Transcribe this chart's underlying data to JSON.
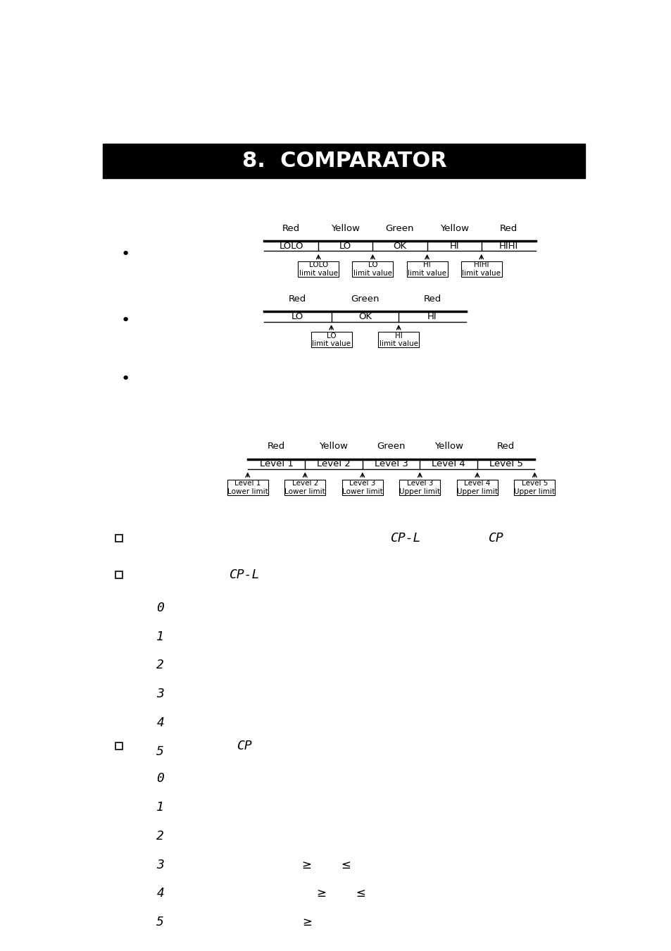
{
  "title": "8.  COMPARATOR",
  "title_bg": "#000000",
  "title_fg": "#ffffff",
  "bg_color": "#ffffff",
  "diagram1": {
    "colors_row": [
      "Red",
      "Yellow",
      "Green",
      "Yellow",
      "Red"
    ],
    "bars_row": [
      "LOLO",
      "LO",
      "OK",
      "HI",
      "HIHI"
    ],
    "boxes": [
      "LOLO\nlimit value",
      "LO\nlimit value",
      "HI\nlimit value",
      "HIHI\nlimit value"
    ],
    "arrow_col_indices": [
      1,
      2,
      3,
      4
    ]
  },
  "diagram2": {
    "colors_row": [
      "Red",
      "Green",
      "Red"
    ],
    "bars_row": [
      "LO",
      "OK",
      "HI"
    ],
    "boxes": [
      "LO\nlimit value",
      "HI\nlimit value"
    ],
    "arrow_col_indices": [
      1,
      2
    ]
  },
  "diagram3": {
    "colors_row": [
      "Red",
      "Yellow",
      "Green",
      "Yellow",
      "Red"
    ],
    "bars_row": [
      "Level 1",
      "Level 2",
      "Level 3",
      "Level 4",
      "Level 5"
    ],
    "boxes": [
      "Level 1\nLower limit",
      "Level 2\nLower limit",
      "Level 3\nLower limit",
      "Level 3\nUpper limit",
      "Level 4\nUpper limit",
      "Level 5\nUpper limit"
    ],
    "arrow_col_indices": [
      0,
      1,
      2,
      3,
      4,
      5
    ]
  },
  "bullet1_cpl": "CP-L",
  "bullet1_cp": "CP",
  "bullet2_header": "CP-L",
  "bullet2_items": [
    "0",
    "1",
    "2",
    "3",
    "4",
    "5"
  ],
  "bullet3_header": "CP",
  "bullet3_items": [
    "0",
    "1",
    "2",
    "3",
    "4",
    "5"
  ],
  "bullet3_extra": [
    "",
    "",
    "",
    "≥        ≤",
    "    ≥        ≤",
    "≥"
  ]
}
